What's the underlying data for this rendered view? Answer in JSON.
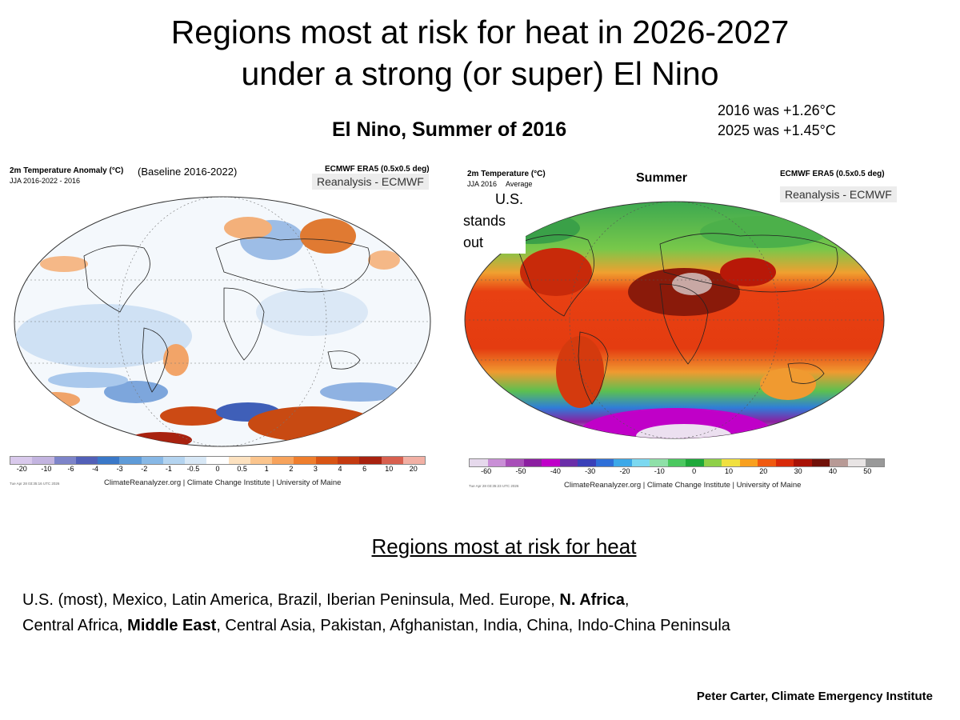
{
  "title": {
    "line1": "Regions most at risk for heat in 2026-2027",
    "line2": "under a strong (or super) El Nino"
  },
  "subtitle": "El Nino, Summer of 2016",
  "anomalies": {
    "line1": "2016 was +1.26°C",
    "line2": "2025  was +1.45°C"
  },
  "left_map": {
    "heading": "2m Temperature Anomaly (°C)",
    "subheading": "JJA 2016-2022 - 2016",
    "baseline": "(Baseline 2016-2022)",
    "source": "ECMWF ERA5 (0.5x0.5 deg)",
    "badge": "Reanalysis - ECMWF",
    "colorbar_ticks": [
      "-20",
      "-10",
      "-6",
      "-4",
      "-3",
      "-2",
      "-1",
      "-0.5",
      "0",
      "0.5",
      "1",
      "2",
      "3",
      "4",
      "6",
      "10",
      "20"
    ],
    "colorbar_colors": [
      "#d9c9ec",
      "#c3b4e0",
      "#7d84c9",
      "#5260b8",
      "#3a78c8",
      "#5e9bd8",
      "#87b8e6",
      "#b4d4f0",
      "#d8e8f6",
      "#ffffff",
      "#fde2c0",
      "#fbc58d",
      "#f7a35c",
      "#ef7e2d",
      "#d85414",
      "#c43a10",
      "#a8220f",
      "#d8604f",
      "#f2b0a4"
    ],
    "credit": "ClimateReanalyzer.org | Climate Change Institute | University of Maine",
    "stamp": "Tue Apr 28 03:35:16 UTC 2026"
  },
  "right_map": {
    "heading": "2m Temperature (°C)",
    "subheading": "JJA 2016",
    "average": "Average",
    "title": "Summer",
    "source": "ECMWF ERA5 (0.5x0.5 deg)",
    "badge": "Reanalysis - ECMWF",
    "annotation": [
      "U.S.",
      "stands",
      "out"
    ],
    "colorbar_ticks": [
      "-60",
      "-50",
      "-40",
      "-30",
      "-20",
      "-10",
      "0",
      "10",
      "20",
      "30",
      "40",
      "50"
    ],
    "colorbar_colors": [
      "#e6d9ec",
      "#c98fd6",
      "#a84fb8",
      "#8b1fa0",
      "#c000c8",
      "#6a2ea8",
      "#3a40b8",
      "#2f6fd8",
      "#3ca8e8",
      "#7cd8f0",
      "#8fe0a8",
      "#4cc860",
      "#1ea83a",
      "#8fd048",
      "#f0e040",
      "#f8a020",
      "#f05a10",
      "#d82a0a",
      "#a81206",
      "#701008",
      "#b89a96",
      "#e8e4e4",
      "#999999"
    ],
    "credit": "ClimateReanalyzer.org | Climate Change Institute | University of Maine",
    "stamp": "Tue Apr 28 03:35:23 UTC 2026"
  },
  "risk": {
    "heading": "Regions most at risk for heat",
    "line1_regular": "U.S. (most), Mexico, Latin America,  Brazil, Iberian Peninsula, Med. Europe, ",
    "line1_bold": "N. Africa",
    "line1_end": ",",
    "line2_start": "Central Africa, ",
    "line2_bold": "Middle East",
    "line2_regular": ", Central Asia, Pakistan, Afghanistan, India, China, Indo-China Peninsula"
  },
  "footer": "Peter Carter, Climate Emergency Institute"
}
